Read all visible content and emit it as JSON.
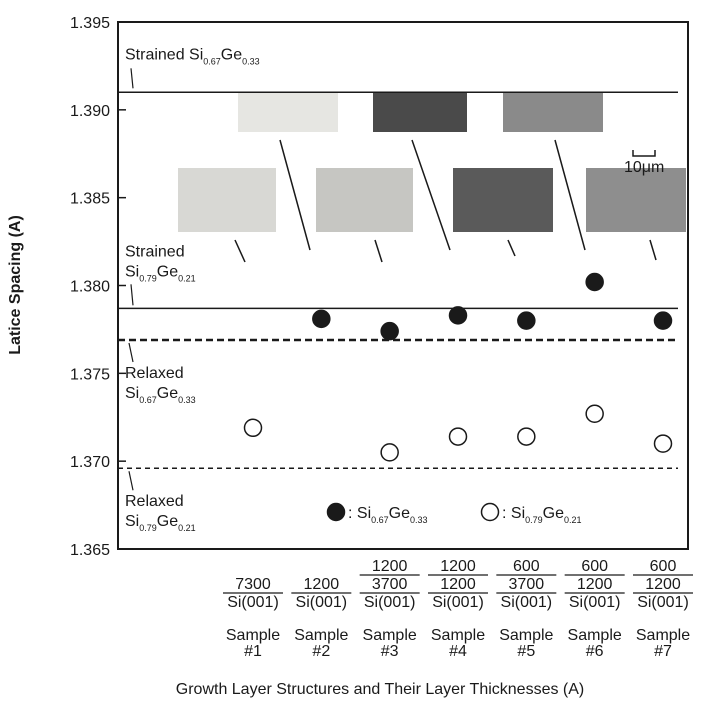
{
  "chart_data": {
    "type": "scatter",
    "y_label": "Latice Spacing (A)",
    "x_label": "Growth Layer Structures and Their Layer Thicknesses (A)",
    "categories": [
      {
        "sample": "Sample",
        "number": "#1",
        "layers": [
          "7300",
          "Si(001)"
        ]
      },
      {
        "sample": "Sample",
        "number": "#2",
        "layers": [
          "1200",
          "Si(001)"
        ]
      },
      {
        "sample": "Sample",
        "number": "#3",
        "layers": [
          "1200",
          "3700",
          "Si(001)"
        ]
      },
      {
        "sample": "Sample",
        "number": "#4",
        "layers": [
          "1200",
          "1200",
          "Si(001)"
        ]
      },
      {
        "sample": "Sample",
        "number": "#5",
        "layers": [
          "600",
          "3700",
          "Si(001)"
        ]
      },
      {
        "sample": "Sample",
        "number": "#6",
        "layers": [
          "600",
          "1200",
          "Si(001)"
        ]
      },
      {
        "sample": "Sample",
        "number": "#7",
        "layers": [
          "600",
          "1200",
          "Si(001)"
        ]
      }
    ],
    "series": [
      {
        "name_parts": [
          ": Si",
          "0.67",
          "Ge",
          "0.33"
        ],
        "marker": "filled",
        "color": "#1a1a1a",
        "values": [
          null,
          1.3781,
          1.3774,
          1.3783,
          1.378,
          1.3802,
          1.378
        ]
      },
      {
        "name_parts": [
          ": Si",
          "0.79",
          "Ge",
          "0.21"
        ],
        "marker": "open",
        "color": "#1a1a1a",
        "values": [
          1.3719,
          null,
          1.3705,
          1.3714,
          1.3714,
          1.3727,
          1.371
        ]
      }
    ],
    "reference_lines": [
      {
        "value": 1.391,
        "style": "solid",
        "label": [
          "Strained Si",
          "0.67",
          "Ge",
          "0.33"
        ]
      },
      {
        "value": 1.3787,
        "style": "solid",
        "label_top": "Strained",
        "label": [
          "Si",
          "0.79",
          "Ge",
          "0.21"
        ]
      },
      {
        "value": 1.3769,
        "style": "dashed-bold",
        "label_top": "Relaxed",
        "label": [
          "Si",
          "0.67",
          "Ge",
          "0.33"
        ]
      },
      {
        "value": 1.3696,
        "style": "dashed",
        "label_top": "Relaxed",
        "label": [
          "Si",
          "0.79",
          "Ge",
          "0.21"
        ]
      }
    ],
    "scale_bar": "10μm",
    "ylim": [
      1.365,
      1.395
    ],
    "yticks": [
      1.365,
      {
        "value": 1.37,
        "label": "1.370"
      },
      1.375,
      {
        "value": 1.38,
        "label": "1.380"
      },
      1.385,
      {
        "value": 1.39,
        "label": "1.390"
      },
      1.395
    ]
  }
}
